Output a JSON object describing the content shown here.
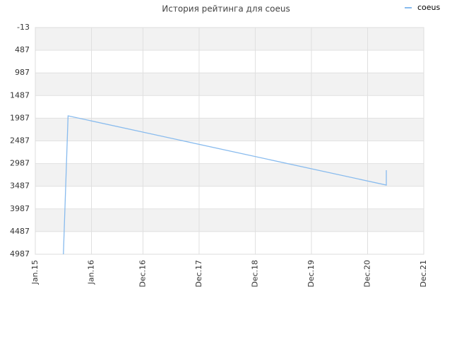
{
  "chart_data": {
    "type": "line",
    "title": "История рейтинга для coeus",
    "x": [
      "2015-07",
      "2015-08",
      "2021-04",
      "2021-04"
    ],
    "series": [
      {
        "name": "coeus",
        "color": "#88bbee",
        "values": [
          4987,
          1934,
          3461,
          3133
        ]
      }
    ],
    "xlim": [
      "2015-01",
      "2021-12"
    ],
    "xticks": [
      {
        "value": "2015-01",
        "label": "Jan.15"
      },
      {
        "value": "2016-01",
        "label": "Jan.16"
      },
      {
        "value": "2016-12",
        "label": "Dec.16"
      },
      {
        "value": "2017-12",
        "label": "Dec.17"
      },
      {
        "value": "2018-12",
        "label": "Dec.18"
      },
      {
        "value": "2019-12",
        "label": "Dec.19"
      },
      {
        "value": "2020-12",
        "label": "Dec.20"
      },
      {
        "value": "2021-12",
        "label": "Dec.21"
      }
    ],
    "ylim": [
      -13,
      4987
    ],
    "y_reversed": true,
    "yticks": [
      -13,
      487,
      987,
      1487,
      1987,
      2487,
      2987,
      3487,
      3987,
      4487,
      4987
    ],
    "grid": true,
    "legend": "top-right"
  }
}
